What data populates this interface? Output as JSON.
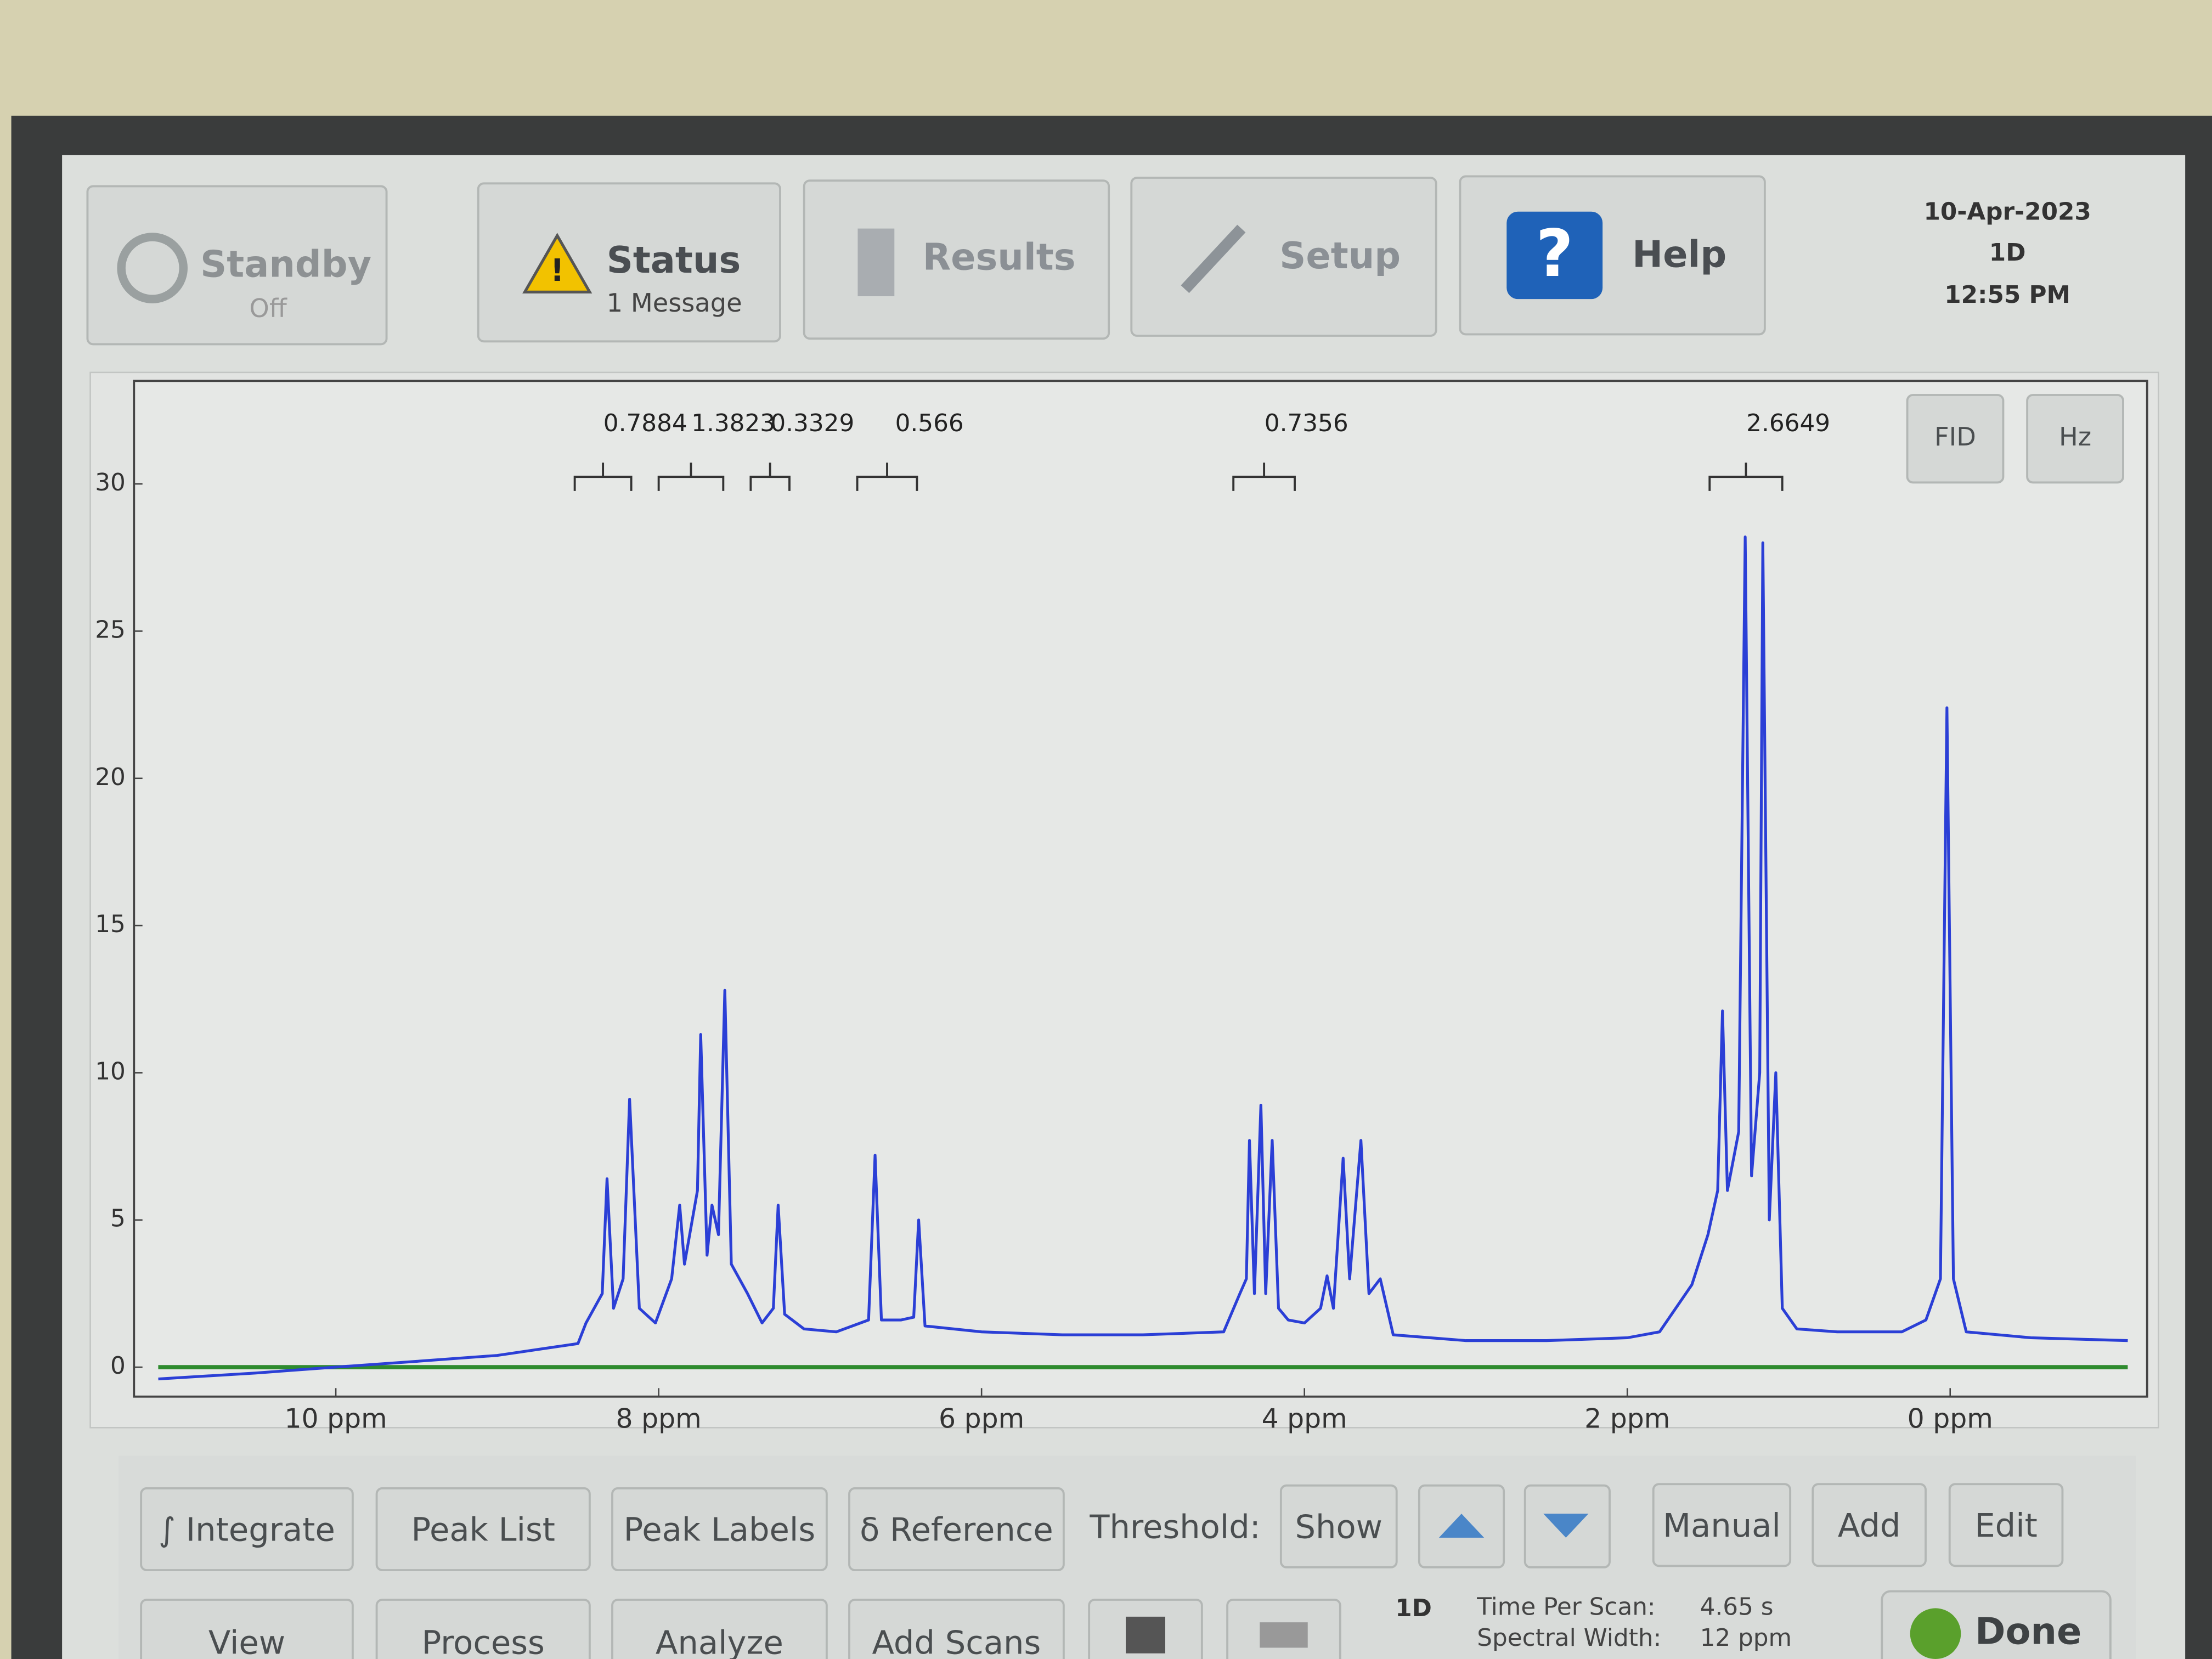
{
  "top_bar": {
    "standby": {
      "label": "Standby",
      "sub": "Off"
    },
    "status": {
      "label": "Status",
      "sub": "1 Message"
    },
    "results": "Results",
    "setup": "Setup",
    "help": "Help",
    "info": [
      "10-Apr-2023",
      "1D",
      "12:55 PM"
    ]
  },
  "chart_data": {
    "type": "line",
    "xlim": [
      11.25,
      -1.22
    ],
    "ylim": [
      -1,
      33.5
    ],
    "xticks": [
      {
        "value": 10,
        "label": "10 ppm"
      },
      {
        "value": 8,
        "label": "8 ppm"
      },
      {
        "value": 6,
        "label": "6 ppm"
      },
      {
        "value": 4,
        "label": "4 ppm"
      },
      {
        "value": 2,
        "label": "2 ppm"
      },
      {
        "value": 0,
        "label": "0 ppm"
      }
    ],
    "yticks": [
      0,
      5,
      10,
      15,
      20,
      25,
      30
    ],
    "x": [
      11.1,
      10.5,
      10,
      9.5,
      9,
      8.5,
      8.45,
      8.35,
      8.32,
      8.28,
      8.22,
      8.18,
      8.12,
      8.02,
      7.92,
      7.87,
      7.84,
      7.76,
      7.74,
      7.7,
      7.67,
      7.63,
      7.59,
      7.55,
      7.45,
      7.36,
      7.29,
      7.26,
      7.22,
      7.1,
      6.9,
      6.7,
      6.66,
      6.62,
      6.5,
      6.42,
      6.39,
      6.35,
      6.0,
      5.5,
      5.0,
      4.5,
      4.4,
      4.36,
      4.34,
      4.31,
      4.27,
      4.24,
      4.2,
      4.16,
      4.1,
      4.0,
      3.9,
      3.86,
      3.82,
      3.76,
      3.72,
      3.65,
      3.6,
      3.53,
      3.45,
      3.0,
      2.5,
      2.0,
      1.8,
      1.6,
      1.5,
      1.44,
      1.41,
      1.38,
      1.31,
      1.27,
      1.23,
      1.18,
      1.16,
      1.12,
      1.08,
      1.04,
      0.95,
      0.7,
      0.3,
      0.15,
      0.06,
      0.02,
      -0.02,
      -0.1,
      -0.5,
      -1.1
    ],
    "series": [
      {
        "color": "#2b3fd6",
        "values": [
          -0.4,
          -0.2,
          0,
          0.2,
          0.4,
          0.8,
          1.5,
          2.5,
          6.4,
          2.0,
          3.0,
          9.1,
          2.0,
          1.5,
          3.0,
          5.5,
          3.5,
          6.0,
          11.3,
          3.8,
          5.5,
          4.5,
          12.8,
          3.5,
          2.5,
          1.5,
          2.0,
          5.5,
          1.8,
          1.3,
          1.2,
          1.6,
          7.2,
          1.6,
          1.6,
          1.7,
          5.0,
          1.4,
          1.2,
          1.1,
          1.1,
          1.2,
          2.5,
          3.0,
          7.7,
          2.5,
          8.9,
          2.5,
          7.7,
          2.0,
          1.6,
          1.5,
          2.0,
          3.1,
          2.0,
          7.1,
          3.0,
          7.7,
          2.5,
          3.0,
          1.1,
          0.9,
          0.9,
          1.0,
          1.2,
          2.8,
          4.5,
          6.0,
          12.1,
          6.0,
          8.0,
          28.2,
          6.5,
          10,
          28.0,
          5.0,
          10.0,
          2.0,
          1.3,
          1.2,
          1.2,
          1.6,
          3.0,
          22.4,
          3.0,
          1.2,
          1.0,
          0.9
        ]
      }
    ],
    "integrals": [
      {
        "value": 0.7884,
        "from": 8.52,
        "to": 8.17
      },
      {
        "value": 1.3823,
        "from": 8.0,
        "to": 7.6
      },
      {
        "value": 0.3329,
        "from": 7.43,
        "to": 7.19
      },
      {
        "value": 0.566,
        "from": 6.77,
        "to": 6.4
      },
      {
        "value": 0.7356,
        "from": 4.44,
        "to": 4.06
      },
      {
        "value": 2.6649,
        "from": 1.49,
        "to": 1.04
      }
    ],
    "baseline_color": "#2e8b2e"
  },
  "chart_buttons": [
    "FID",
    "Hz"
  ],
  "toolbar": {
    "row1": [
      "∫ Integrate",
      "Peak List",
      "Peak Labels",
      "δ Reference"
    ],
    "threshold": "Threshold:",
    "show": "Show",
    "row1_right": [
      "Manual",
      "Add",
      "Edit"
    ],
    "row2": [
      "View",
      "Process",
      "Analyze",
      "Add Scans"
    ],
    "mode": "1D",
    "time_label": "Time Per Scan:",
    "time_value": "4.65 s",
    "width_label": "Spectral Width:",
    "width_value": "12 ppm",
    "done": "Done"
  }
}
